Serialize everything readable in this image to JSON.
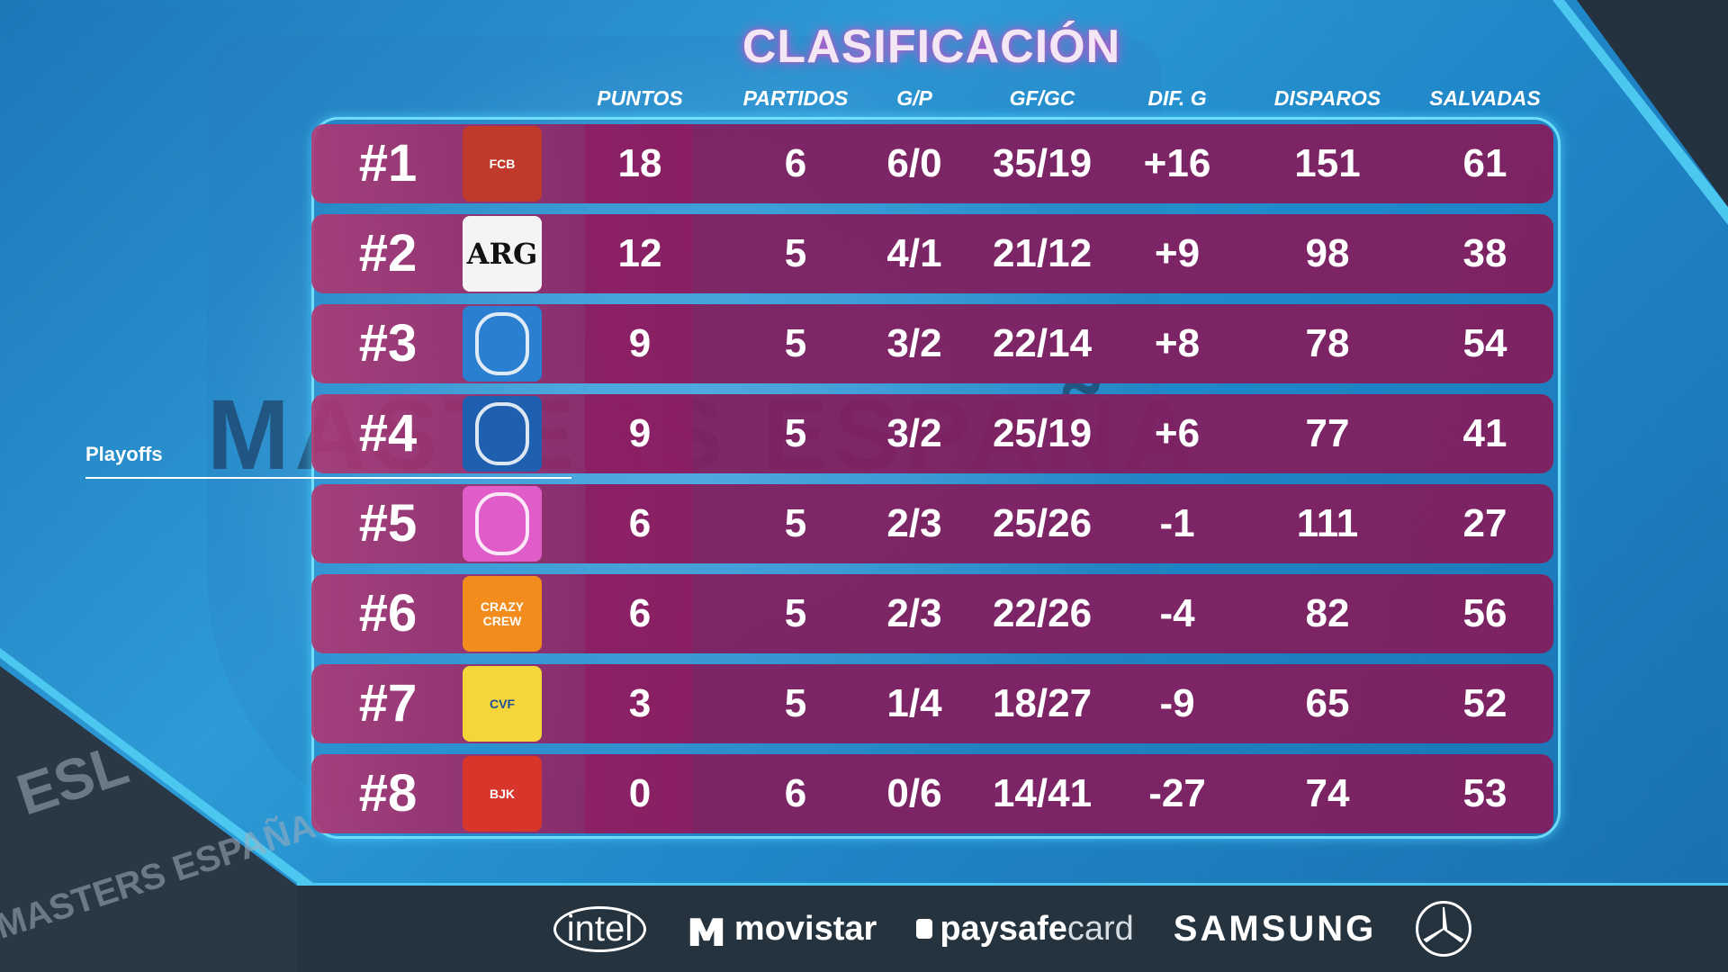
{
  "title": "CLASIFICACIÓN",
  "columns": [
    "PUNTOS",
    "PARTIDOS",
    "G/P",
    "GF/GC",
    "DIF. G",
    "DISPAROS",
    "SALVADAS"
  ],
  "playoffs_label": "Playoffs",
  "background_text": "MASTERS ESPAÑA",
  "corner_logo": "ESL",
  "corner_text": "MASTERS ESPAÑA",
  "rows": [
    {
      "rank": "#1",
      "logo": "fcb-crest-icon",
      "logo_text": "FCB",
      "puntos": "18",
      "partidos": "6",
      "gp": "6/0",
      "gfgc": "35/19",
      "dif": "+16",
      "disparos": "151",
      "salvadas": "61"
    },
    {
      "rank": "#2",
      "logo": "arg-logo-icon",
      "logo_text": "ARG",
      "puntos": "12",
      "partidos": "5",
      "gp": "4/1",
      "gfgc": "21/12",
      "dif": "+9",
      "disparos": "98",
      "salvadas": "38"
    },
    {
      "rank": "#3",
      "logo": "espanyol-crest-icon",
      "logo_text": "",
      "puntos": "9",
      "partidos": "5",
      "gp": "3/2",
      "gfgc": "22/14",
      "dif": "+8",
      "disparos": "78",
      "salvadas": "54"
    },
    {
      "rank": "#4",
      "logo": "getafe-crest-icon",
      "logo_text": "",
      "puntos": "9",
      "partidos": "5",
      "gp": "3/2",
      "gfgc": "25/19",
      "dif": "+6",
      "disparos": "77",
      "salvadas": "41"
    },
    {
      "rank": "#5",
      "logo": "octopus-logo-icon",
      "logo_text": "",
      "puntos": "6",
      "partidos": "5",
      "gp": "2/3",
      "gfgc": "25/26",
      "dif": "-1",
      "disparos": "111",
      "salvadas": "27"
    },
    {
      "rank": "#6",
      "logo": "crazy-crew-logo-icon",
      "logo_text": "CRAZY CREW",
      "puntos": "6",
      "partidos": "5",
      "gp": "2/3",
      "gfgc": "22/26",
      "dif": "-4",
      "disparos": "82",
      "salvadas": "56"
    },
    {
      "rank": "#7",
      "logo": "villarreal-crest-icon",
      "logo_text": "CVF",
      "puntos": "3",
      "partidos": "5",
      "gp": "1/4",
      "gfgc": "18/27",
      "dif": "-9",
      "disparos": "65",
      "salvadas": "52"
    },
    {
      "rank": "#8",
      "logo": "besiktas-crest-icon",
      "logo_text": "BJK",
      "puntos": "0",
      "partidos": "6",
      "gp": "0/6",
      "gfgc": "14/41",
      "dif": "-27",
      "disparos": "74",
      "salvadas": "53"
    }
  ],
  "logo_colors": [
    "#c0392b",
    "#f4f4f4",
    "#2b7fd0",
    "#1f5fb0",
    "#e05cc8",
    "#f28c1c",
    "#f5d63a",
    "#d8362a"
  ],
  "sponsors": {
    "intel": "intel",
    "movistar": "movistar",
    "paysafecard_bold": "paysafe",
    "paysafecard_thin": "card",
    "samsung": "SAMSUNG",
    "mercedes": "mercedes-star-icon"
  }
}
